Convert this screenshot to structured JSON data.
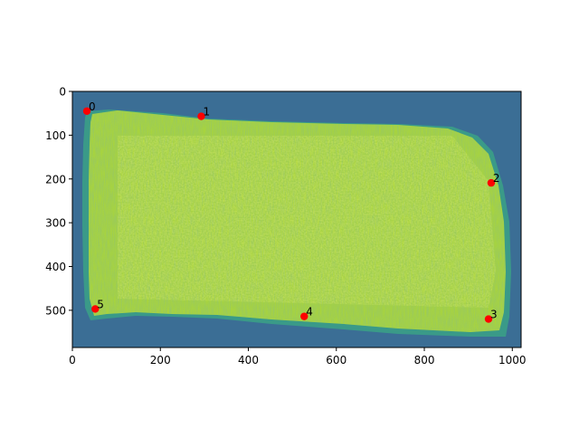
{
  "chart_data": {
    "type": "scatter",
    "title": "",
    "xlabel": "",
    "ylabel": "",
    "xlim": [
      0,
      1020
    ],
    "ylim": [
      585,
      0
    ],
    "grid": false,
    "background": "image",
    "image_colors": {
      "background": "#3b6e95",
      "edge": "#3a9a88",
      "fill": "#a9d53a",
      "highlight": "#c8dc3a"
    },
    "marker_color": "#ff0000",
    "label_color": "#000000",
    "x_ticks": [
      0,
      200,
      400,
      600,
      800,
      1000
    ],
    "y_ticks": [
      0,
      100,
      200,
      300,
      400,
      500
    ],
    "points": [
      {
        "label": "0",
        "x": 33,
        "y": 45
      },
      {
        "label": "1",
        "x": 293,
        "y": 57
      },
      {
        "label": "2",
        "x": 952,
        "y": 209
      },
      {
        "label": "3",
        "x": 946,
        "y": 520
      },
      {
        "label": "4",
        "x": 527,
        "y": 514
      },
      {
        "label": "5",
        "x": 52,
        "y": 497
      }
    ]
  }
}
